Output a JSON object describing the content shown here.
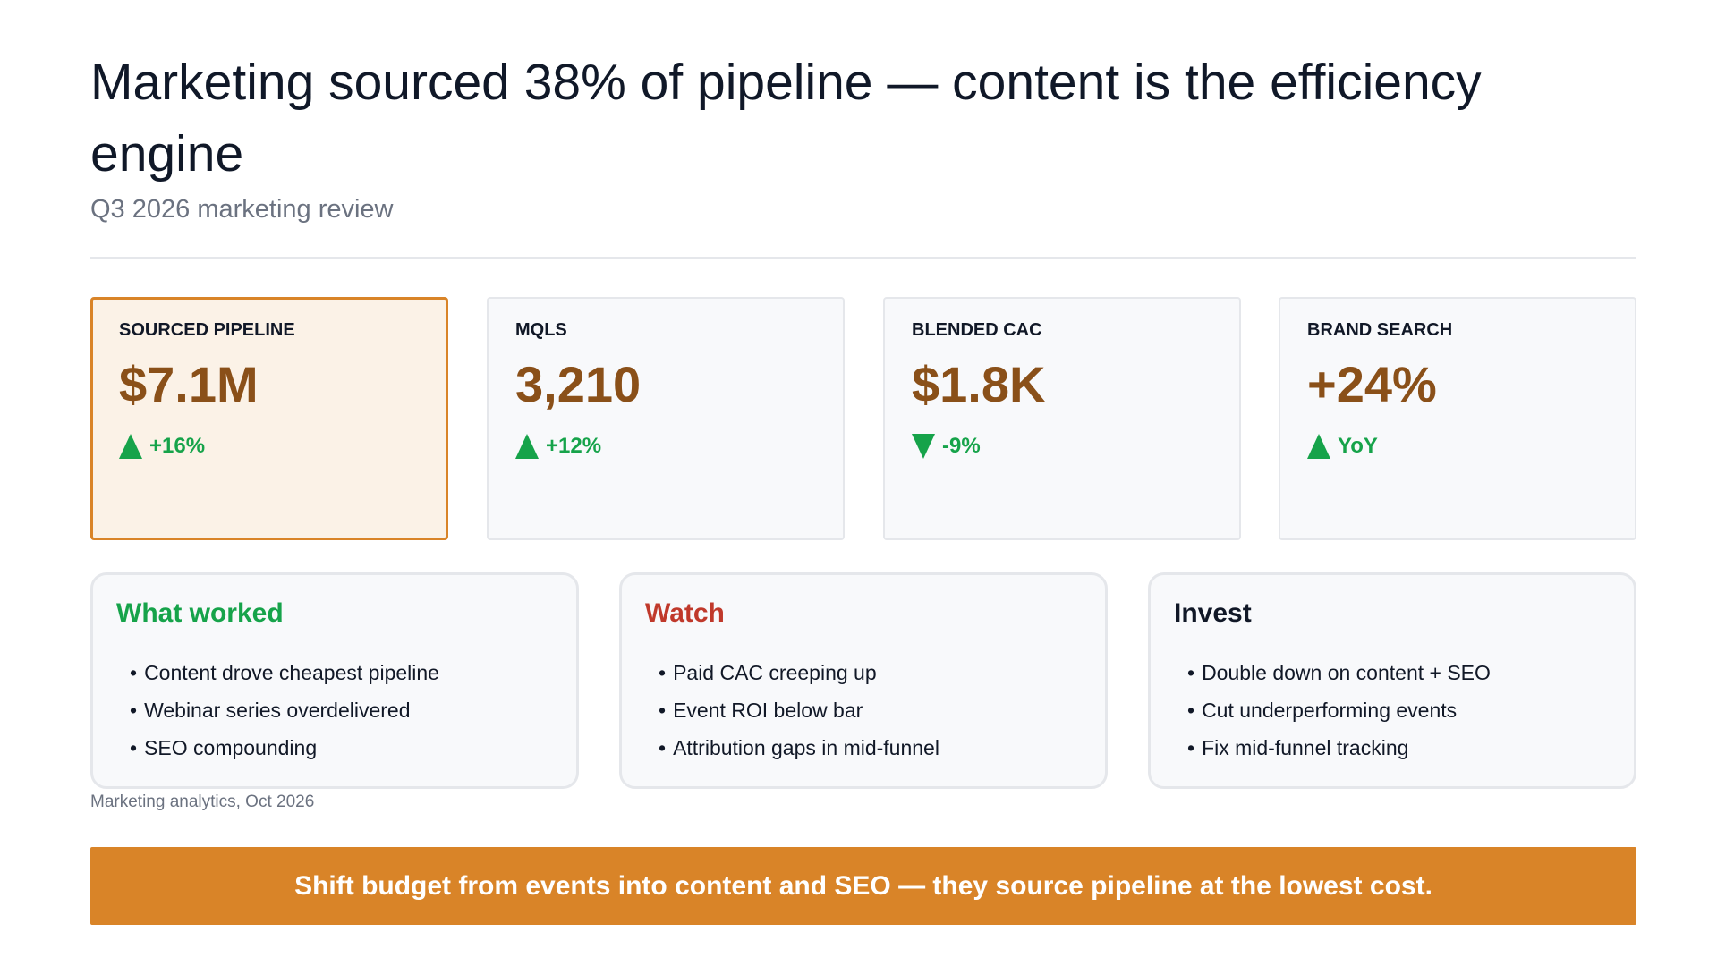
{
  "header": {
    "title": "Marketing sourced 38% of pipeline — content is the efficiency engine",
    "subtitle": "Q3 2026 marketing review"
  },
  "kpis": [
    {
      "label": "SOURCED PIPELINE",
      "value": "$7.1M",
      "delta": "+16%",
      "direction": "up",
      "highlight": true
    },
    {
      "label": "MQLS",
      "value": "3,210",
      "delta": "+12%",
      "direction": "up",
      "highlight": false
    },
    {
      "label": "BLENDED CAC",
      "value": "$1.8K",
      "delta": "-9%",
      "direction": "down",
      "highlight": false
    },
    {
      "label": "BRAND SEARCH",
      "value": "+24%",
      "delta": "YoY",
      "direction": "up",
      "highlight": false
    }
  ],
  "cards": [
    {
      "title": "What worked",
      "items": [
        "Content drove cheapest pipeline",
        "Webinar series overdelivered",
        "SEO compounding"
      ]
    },
    {
      "title": "Watch",
      "items": [
        "Paid CAC creeping up",
        "Event ROI below bar",
        "Attribution gaps in mid-funnel"
      ]
    },
    {
      "title": "Invest",
      "items": [
        "Double down on content + SEO",
        "Cut underperforming events",
        "Fix mid-funnel tracking"
      ]
    }
  ],
  "footer": {
    "source": "Marketing analytics, Oct 2026",
    "banner": "Shift budget from events into content and SEO — they source pipeline at the lowest cost."
  },
  "colors": {
    "accent": "#d98428",
    "value": "#8a5019",
    "positive": "#16a34a",
    "worked": "#16a34a",
    "watch": "#c0392b",
    "invest": "#111827"
  }
}
